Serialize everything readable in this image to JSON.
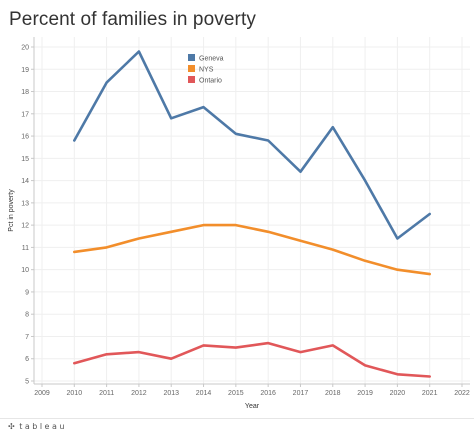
{
  "page": {
    "title": "Percent of families in poverty"
  },
  "branding": {
    "mark": "✣",
    "text": "tableau"
  },
  "chart_data": {
    "type": "line",
    "title": "Percent of families in poverty",
    "xlabel": "Year",
    "ylabel": "Pct in poverty",
    "xlim": [
      2009,
      2022
    ],
    "ylim": [
      5,
      20
    ],
    "x_ticks": [
      "2009",
      "2010",
      "2011",
      "2012",
      "2013",
      "2014",
      "2015",
      "2016",
      "2017",
      "2018",
      "2019",
      "2020",
      "2021",
      "2022"
    ],
    "y_ticks": [
      "5",
      "6",
      "7",
      "8",
      "9",
      "10",
      "11",
      "12",
      "13",
      "14",
      "15",
      "16",
      "17",
      "18",
      "19",
      "20"
    ],
    "grid": "x and y",
    "legend_position": "top-left inside plot",
    "x": [
      2010,
      2011,
      2012,
      2013,
      2014,
      2015,
      2016,
      2017,
      2018,
      2019,
      2020,
      2021
    ],
    "series": [
      {
        "name": "Geneva",
        "color": "#4e79a7",
        "values": [
          15.8,
          18.4,
          19.8,
          16.8,
          17.3,
          16.1,
          15.8,
          14.4,
          16.4,
          14.0,
          11.4,
          12.5
        ]
      },
      {
        "name": "NYS",
        "color": "#f28e2b",
        "values": [
          10.8,
          11.0,
          11.4,
          11.7,
          12.0,
          12.0,
          11.7,
          11.3,
          10.9,
          10.4,
          10.0,
          9.8
        ]
      },
      {
        "name": "Ontario",
        "color": "#e15759",
        "values": [
          5.8,
          6.2,
          6.3,
          6.0,
          6.6,
          6.5,
          6.7,
          6.3,
          6.6,
          5.7,
          5.3,
          5.2
        ]
      }
    ]
  }
}
